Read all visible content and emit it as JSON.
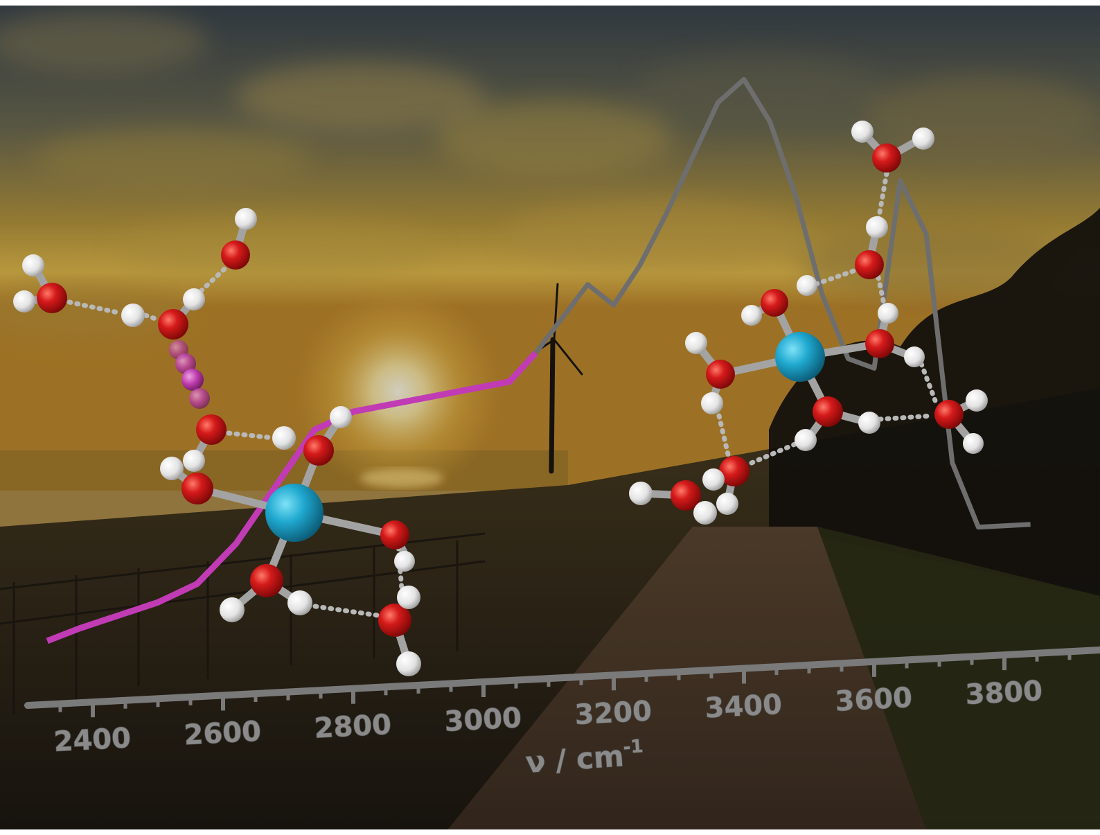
{
  "scene": {
    "description_words": "",
    "colors": {
      "sky_top": "#3e4a52",
      "sky_glow": "#e3b64a",
      "sun": "#fff6d8",
      "ground": "#2c2418",
      "path": "#4a3a2c",
      "grass": "#30331c",
      "trees": "#15130f",
      "trace_magenta": "#c13bb5",
      "trace_gray": "#6e6e6e",
      "axis": "#777777",
      "oxygen": "#d01818",
      "hydrogen": "#eeeeee",
      "cation": "#1ea6cc",
      "bond": "#9a9a9a"
    }
  },
  "axis": {
    "tick_labels": [
      "2400",
      "2600",
      "2800",
      "3000",
      "3200",
      "3400",
      "3600",
      "3800"
    ],
    "label_main": "ν / cm",
    "label_sup": "-1"
  },
  "spectrum": {
    "x_unit": "cm-1",
    "magenta_segment": {
      "x": [
        2330,
        2380,
        2440,
        2500,
        2560,
        2620,
        2680,
        2740,
        2800,
        2860,
        2920,
        2980,
        3040,
        3080
      ],
      "y": [
        0.04,
        0.06,
        0.08,
        0.1,
        0.13,
        0.2,
        0.3,
        0.4,
        0.43,
        0.44,
        0.45,
        0.46,
        0.47,
        0.52
      ]
    },
    "gray_segment": {
      "x": [
        3080,
        3120,
        3160,
        3200,
        3240,
        3280,
        3320,
        3360,
        3400,
        3440,
        3480,
        3520,
        3560,
        3600,
        3640,
        3680,
        3720,
        3760,
        3800,
        3840
      ],
      "y": [
        0.52,
        0.58,
        0.64,
        0.6,
        0.67,
        0.76,
        0.86,
        0.96,
        1.0,
        0.92,
        0.78,
        0.6,
        0.48,
        0.46,
        0.8,
        0.7,
        0.28,
        0.16,
        0.16,
        0.16
      ]
    }
  }
}
